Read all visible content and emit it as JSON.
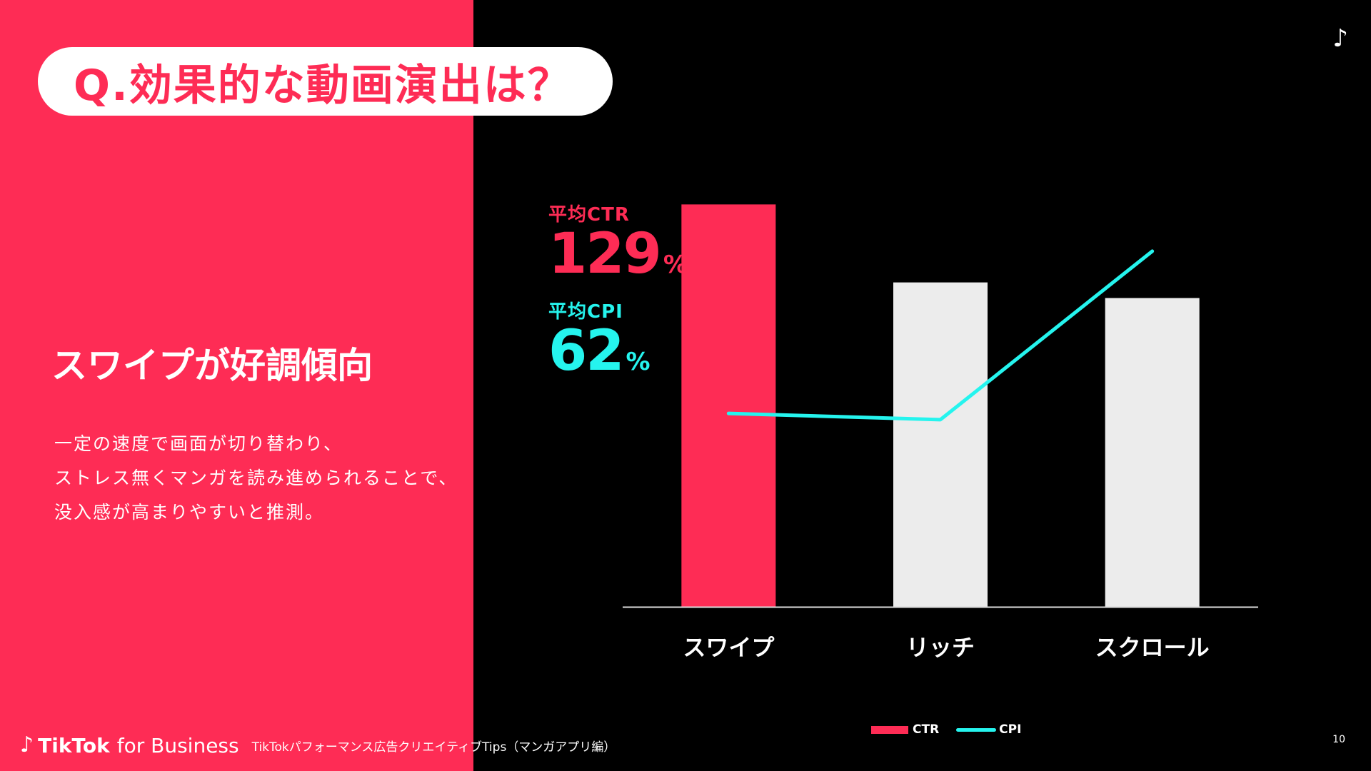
{
  "title": "Q.効果的な動画演出は？",
  "headline": "スワイプが好調傾向",
  "body_lines": [
    "一定の速度で画面が切り替わり、",
    "ストレス無くマンガを読み進められることで、",
    "没入感が高まりやすいと推測。"
  ],
  "stats": {
    "ctr": {
      "label": "平均CTR",
      "value": "129",
      "unit": "%"
    },
    "cpi": {
      "label": "平均CPI",
      "value": "62",
      "unit": "%"
    }
  },
  "legend": {
    "ctr": "CTR",
    "cpi": "CPI"
  },
  "footer": {
    "brand_icon": "♪",
    "brand_name": "TikTok",
    "brand_suffix": "for Business",
    "subtitle": "TikTokパフォーマンス広告クリエイティブTips（マンガアプリ編）"
  },
  "page_number": "10",
  "corner_icon": "tiktok-note-icon",
  "colors": {
    "accent_red": "#fe2c55",
    "accent_cyan": "#25f4ee",
    "bar_grey": "#ececec",
    "background": "#000000"
  },
  "chart_data": {
    "type": "bar",
    "categories": [
      "スワイプ",
      "リッチ",
      "スクロール"
    ],
    "series": [
      {
        "name": "CTR",
        "kind": "bar",
        "values": [
          129,
          104,
          99
        ]
      },
      {
        "name": "CPI",
        "kind": "line",
        "values": [
          62,
          60,
          114
        ]
      }
    ],
    "ylim": [
      0,
      130
    ],
    "highlight_index": 0,
    "grid": false,
    "legend_position": "bottom",
    "y_axis_labels": false
  }
}
